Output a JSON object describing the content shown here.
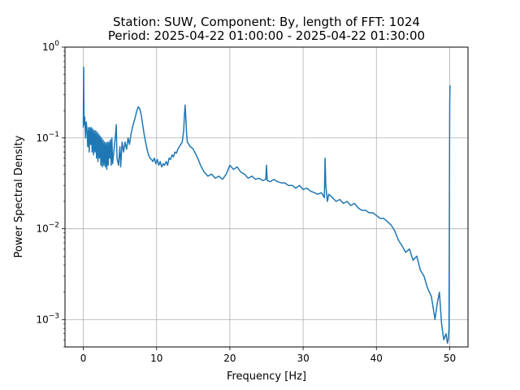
{
  "chart_data": {
    "type": "line",
    "title": "Station: SUW, Component: By, length of FFT: 1024",
    "subtitle": "Period: 2025-04-22 01:00:00 - 2025-04-22 01:30:00",
    "xlabel": "Frequency [Hz]",
    "ylabel": "Power Spectral Density",
    "xlim": [
      -2.5,
      52.5
    ],
    "ylim": [
      0.0005,
      1
    ],
    "yscale": "log",
    "grid": true,
    "line_color": "#1f77b4",
    "x_ticks": [
      {
        "value": 0,
        "label": "0"
      },
      {
        "value": 10,
        "label": "10"
      },
      {
        "value": 20,
        "label": "20"
      },
      {
        "value": 30,
        "label": "30"
      },
      {
        "value": 40,
        "label": "40"
      },
      {
        "value": 50,
        "label": "50"
      }
    ],
    "y_ticks": [
      {
        "value": 0.001,
        "base": "10",
        "exp": "−3"
      },
      {
        "value": 0.01,
        "base": "10",
        "exp": "−2"
      },
      {
        "value": 0.1,
        "base": "10",
        "exp": "−1"
      },
      {
        "value": 1,
        "base": "10",
        "exp": "0"
      }
    ],
    "x": [
      0.0,
      0.05,
      0.1,
      0.2,
      0.3,
      0.4,
      0.5,
      0.6,
      0.7,
      0.8,
      0.9,
      1.0,
      1.1,
      1.2,
      1.3,
      1.4,
      1.5,
      1.6,
      1.7,
      1.8,
      1.9,
      2.0,
      2.1,
      2.2,
      2.3,
      2.4,
      2.5,
      2.6,
      2.7,
      2.8,
      2.9,
      3.0,
      3.1,
      3.2,
      3.3,
      3.4,
      3.5,
      3.6,
      3.7,
      3.8,
      3.9,
      4.0,
      4.2,
      4.4,
      4.5,
      4.6,
      4.8,
      5.0,
      5.1,
      5.3,
      5.5,
      5.7,
      5.9,
      6.1,
      6.3,
      6.5,
      6.7,
      6.9,
      7.1,
      7.3,
      7.5,
      7.7,
      7.9,
      8.1,
      8.3,
      8.5,
      8.7,
      8.9,
      9.1,
      9.3,
      9.5,
      9.7,
      9.9,
      10.1,
      10.3,
      10.5,
      10.7,
      10.9,
      11.1,
      11.3,
      11.5,
      11.7,
      11.9,
      12.1,
      12.3,
      12.5,
      12.7,
      12.9,
      13.1,
      13.3,
      13.5,
      13.7,
      13.8,
      13.9,
      14.0,
      14.1,
      14.2,
      14.4,
      14.6,
      14.8,
      15.0,
      15.2,
      15.4,
      15.6,
      15.8,
      16.0,
      16.5,
      17.0,
      17.5,
      18.0,
      18.5,
      19.0,
      19.5,
      20.0,
      20.5,
      21.0,
      21.5,
      22.0,
      22.5,
      23.0,
      23.5,
      24.0,
      24.5,
      24.9,
      25.0,
      25.1,
      25.5,
      26.0,
      26.5,
      27.0,
      27.5,
      28.0,
      28.5,
      29.0,
      29.5,
      30.0,
      30.5,
      31.0,
      31.5,
      32.0,
      32.5,
      32.9,
      33.0,
      33.1,
      33.3,
      33.5,
      34.0,
      34.5,
      35.0,
      35.5,
      36.0,
      36.5,
      37.0,
      37.5,
      38.0,
      38.5,
      39.0,
      39.5,
      40.0,
      40.5,
      41.0,
      41.5,
      42.0,
      42.5,
      43.0,
      43.5,
      44.0,
      44.5,
      45.0,
      45.5,
      46.0,
      46.5,
      47.0,
      47.5,
      48.0,
      48.3,
      48.6,
      48.9,
      49.2,
      49.5,
      49.7,
      49.8,
      49.9,
      50.0,
      50.05
    ],
    "y": [
      0.13,
      0.6,
      0.14,
      0.17,
      0.1,
      0.15,
      0.12,
      0.08,
      0.13,
      0.07,
      0.13,
      0.085,
      0.13,
      0.07,
      0.125,
      0.065,
      0.12,
      0.07,
      0.12,
      0.06,
      0.115,
      0.055,
      0.11,
      0.06,
      0.105,
      0.05,
      0.1,
      0.048,
      0.095,
      0.05,
      0.09,
      0.048,
      0.088,
      0.045,
      0.09,
      0.05,
      0.09,
      0.06,
      0.095,
      0.05,
      0.1,
      0.052,
      0.075,
      0.11,
      0.14,
      0.06,
      0.05,
      0.08,
      0.048,
      0.09,
      0.07,
      0.09,
      0.075,
      0.1,
      0.085,
      0.11,
      0.13,
      0.15,
      0.17,
      0.2,
      0.22,
      0.21,
      0.18,
      0.14,
      0.11,
      0.09,
      0.075,
      0.065,
      0.06,
      0.058,
      0.055,
      0.06,
      0.052,
      0.058,
      0.05,
      0.055,
      0.048,
      0.052,
      0.05,
      0.055,
      0.05,
      0.06,
      0.058,
      0.065,
      0.062,
      0.07,
      0.068,
      0.075,
      0.08,
      0.085,
      0.09,
      0.12,
      0.18,
      0.23,
      0.16,
      0.11,
      0.09,
      0.085,
      0.08,
      0.078,
      0.075,
      0.07,
      0.065,
      0.06,
      0.055,
      0.05,
      0.042,
      0.038,
      0.04,
      0.036,
      0.038,
      0.035,
      0.04,
      0.05,
      0.045,
      0.048,
      0.042,
      0.04,
      0.036,
      0.038,
      0.035,
      0.036,
      0.034,
      0.035,
      0.05,
      0.034,
      0.033,
      0.035,
      0.033,
      0.032,
      0.032,
      0.03,
      0.03,
      0.028,
      0.03,
      0.027,
      0.028,
      0.026,
      0.025,
      0.024,
      0.025,
      0.022,
      0.06,
      0.03,
      0.02,
      0.024,
      0.022,
      0.02,
      0.021,
      0.019,
      0.02,
      0.018,
      0.019,
      0.017,
      0.016,
      0.016,
      0.015,
      0.015,
      0.014,
      0.013,
      0.013,
      0.012,
      0.011,
      0.0095,
      0.0075,
      0.0065,
      0.0055,
      0.006,
      0.0045,
      0.005,
      0.0035,
      0.003,
      0.0022,
      0.0018,
      0.001,
      0.0015,
      0.002,
      0.0009,
      0.0006,
      0.0007,
      0.00055,
      0.0006,
      0.0008,
      0.25,
      0.38
    ]
  }
}
